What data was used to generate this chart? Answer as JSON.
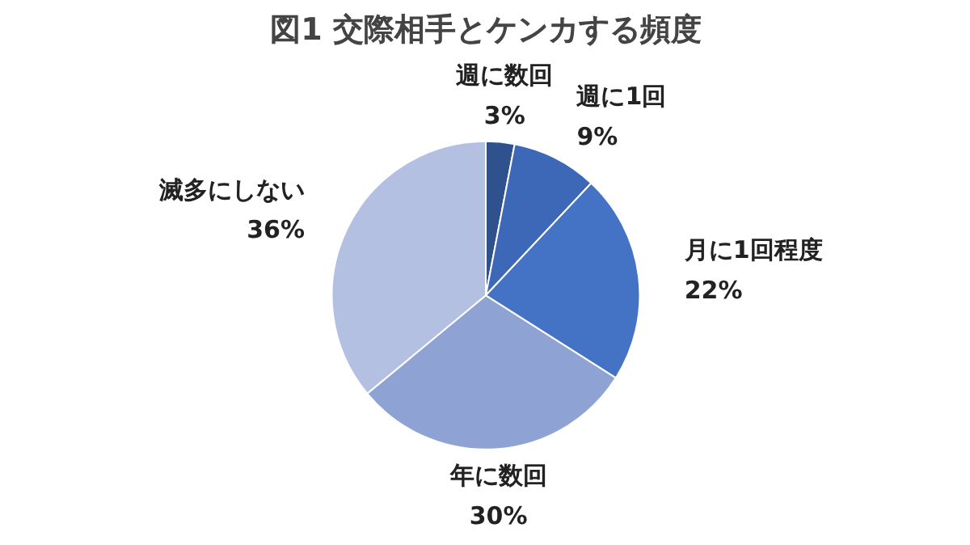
{
  "chart_data": {
    "type": "pie",
    "title": "図1 交際相手とケンカする頻度",
    "categories": [
      "週に数回",
      "週に1回",
      "月に1回程度",
      "年に数回",
      "滅多にしない"
    ],
    "values": [
      3,
      9,
      22,
      30,
      36
    ],
    "value_labels": [
      "3%",
      "9%",
      "22%",
      "30%",
      "36%"
    ],
    "colors": [
      "#2f528f",
      "#3d68b8",
      "#4472c4",
      "#8fa2d4",
      "#b4c0e2"
    ],
    "legend": false
  }
}
